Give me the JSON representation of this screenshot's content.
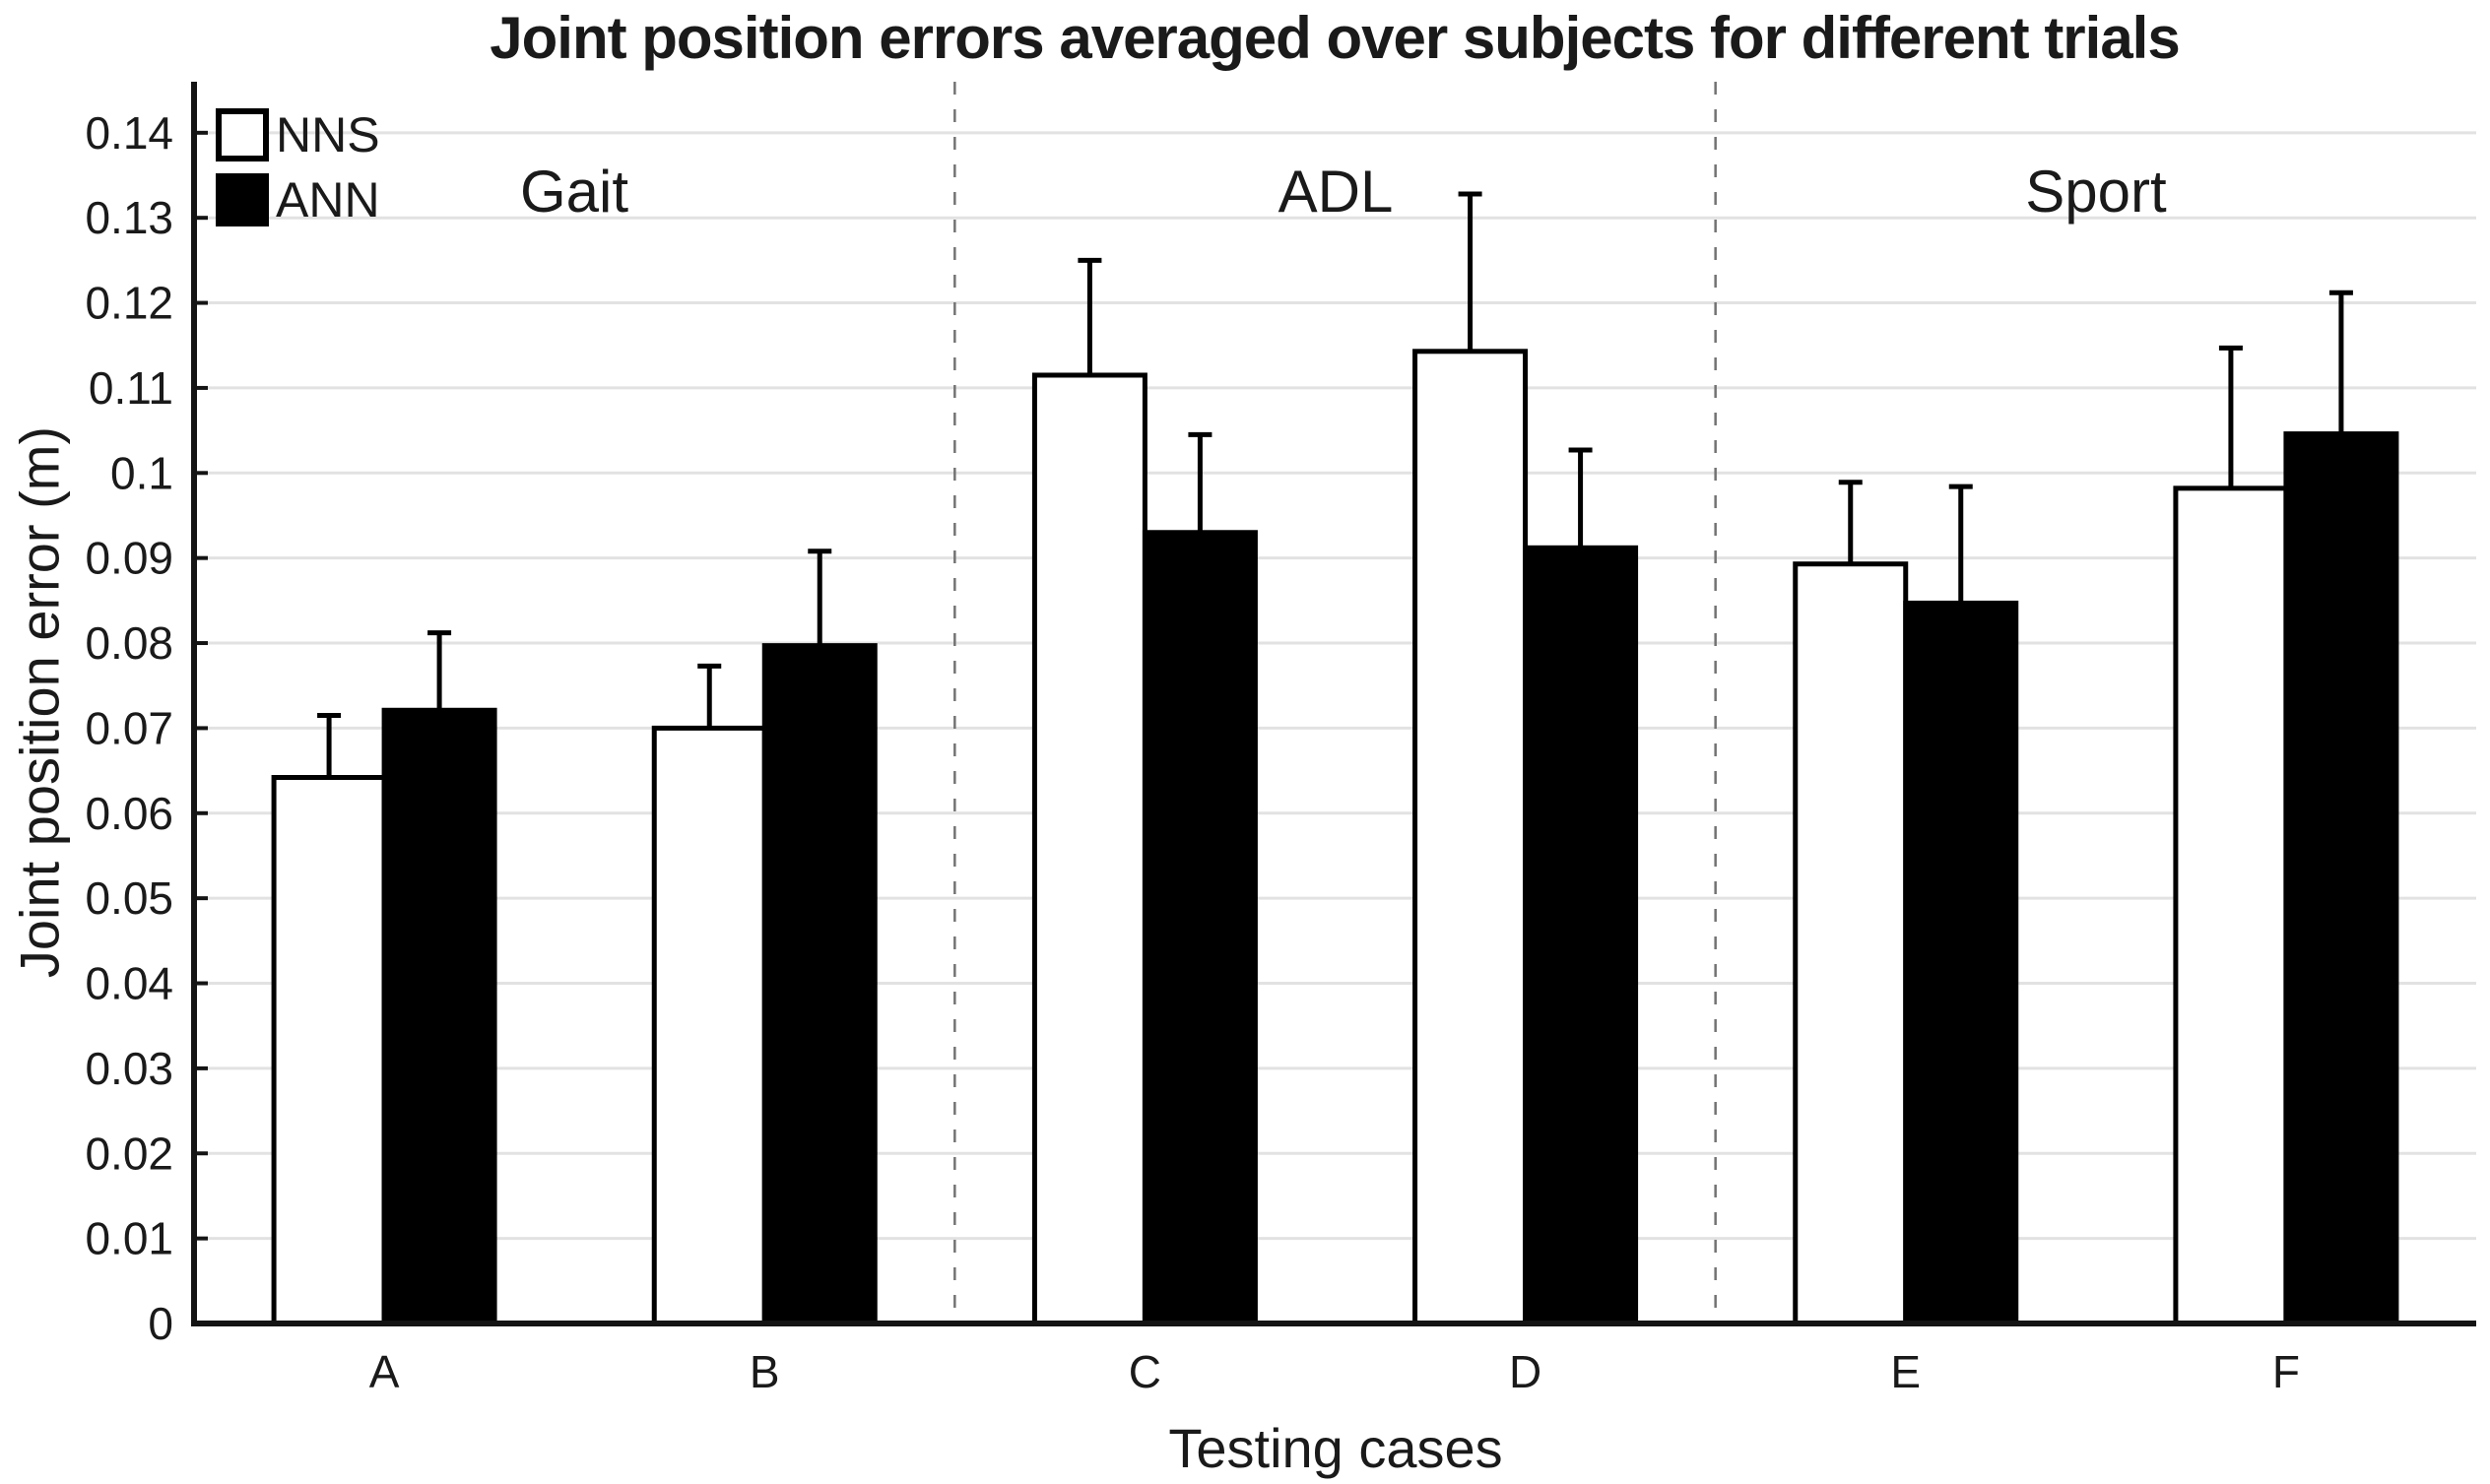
{
  "title": "Joint position errors averaged over subjects for different trials",
  "chart_data": {
    "type": "bar",
    "title": "Joint position errors averaged over subjects for different trials",
    "xlabel": "Testing cases",
    "ylabel": "Joint position error (m)",
    "categories": [
      "A",
      "B",
      "C",
      "D",
      "E",
      "F"
    ],
    "groups": [
      {
        "label": "Gait",
        "categories": [
          "A",
          "B"
        ]
      },
      {
        "label": "ADL",
        "categories": [
          "C",
          "D"
        ]
      },
      {
        "label": "Sport",
        "categories": [
          "E",
          "F"
        ]
      }
    ],
    "series": [
      {
        "name": "NNS",
        "fill": "#ffffff",
        "values": [
          0.0642,
          0.07,
          0.1115,
          0.1143,
          0.0893,
          0.0982
        ],
        "errors_plus": [
          0.0073,
          0.0073,
          0.0135,
          0.0185,
          0.0096,
          0.0165
        ]
      },
      {
        "name": "ANN",
        "fill": "#000000",
        "values": [
          0.0721,
          0.0797,
          0.093,
          0.0912,
          0.0847,
          0.1046
        ],
        "errors_plus": [
          0.0091,
          0.0111,
          0.0115,
          0.0115,
          0.0137,
          0.0166
        ]
      }
    ],
    "ylim": [
      0,
      0.146
    ],
    "ytick_step": 0.01,
    "ytick_labels": [
      "0",
      "0.01",
      "0.02",
      "0.03",
      "0.04",
      "0.05",
      "0.06",
      "0.07",
      "0.08",
      "0.09",
      "0.1",
      "0.11",
      "0.12",
      "0.13",
      "0.14"
    ],
    "grid": "horizontal-light",
    "legend_position": "top-left-inside",
    "separators_before_categories": [
      "C",
      "E"
    ],
    "separator_style": "dashed-gray"
  },
  "colors": {
    "bar_outline": "#000000",
    "grid": "#e2e2e2",
    "axis": "#141414",
    "separator": "#737373",
    "text": "#1a1a1a",
    "background": "#ffffff"
  }
}
